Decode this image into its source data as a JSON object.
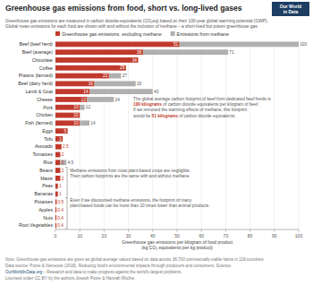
{
  "chart_data": {
    "type": "bar",
    "orientation": "horizontal",
    "stacked": true,
    "grid": true,
    "title": "Greenhouse gas emissions from food, short vs. long-lived gases",
    "subtitle": [
      "Greenhouse gas emissions are measured in carbon dioxide-equivalents (CO₂eq) based on their 100-year global warming potential (GWP).",
      "Global mean emissions for each food are shown with and without the inclusion of methane – a short-lived but potent greenhouse gas."
    ],
    "xlabel": "Greenhouse gas emissions per kilogram of food product\n(kg CO₂ equivalents per kg product)",
    "categories": [
      "Beef (beef herd)",
      "Beef (average)",
      "Chocolate",
      "Coffee",
      "Prawns (farmed)",
      "Beef (dairy herd)",
      "Lamb & Goat",
      "Cheese",
      "Pork",
      "Chicken",
      "Fish (farmed)",
      "Eggs",
      "Tofu",
      "Avocado",
      "Tomatoes",
      "Rice",
      "Beans",
      "Maize",
      "Peas",
      "Bananas",
      "Potatoes",
      "Apples",
      "Nuts",
      "Root Vegetables"
    ],
    "series": [
      {
        "name": "Greenhouse gas emissions, excluding methane",
        "color": "#c0392b",
        "data_labels": true,
        "values": [
          51,
          36,
          34,
          29,
          22,
          16,
          14,
          13,
          10,
          10,
          10,
          5,
          3,
          2.5,
          2,
          2,
          2,
          2,
          1,
          1,
          0.5,
          0.4,
          0.4,
          0.4
        ]
      },
      {
        "name": "Emissions from methane",
        "color": "#b0b0b0",
        "values": [
          49,
          35,
          0,
          0,
          5,
          17,
          26,
          11,
          2,
          0,
          4,
          0,
          0,
          0,
          0,
          2.5,
          0,
          0,
          0,
          0,
          0,
          0,
          0,
          0
        ]
      }
    ],
    "totals": [
      100,
      71,
      null,
      null,
      27,
      33,
      40,
      24,
      12,
      null,
      14,
      null,
      null,
      null,
      null,
      4.5,
      null,
      null,
      null,
      null,
      null,
      null,
      null,
      null
    ],
    "xlim": [
      0,
      100
    ],
    "xticks": [
      0,
      10,
      20,
      30,
      40,
      50,
      60,
      70,
      80,
      90,
      100
    ],
    "annotations": [
      {
        "lines": [
          [
            {
              "text": "The global average carbon footprint of beef from dedicated beef herds is"
            }
          ],
          [
            {
              "text": "100 kilograms",
              "color": "#c0392b"
            },
            {
              "text": " of carbon dioxide equivalents per kilogram of beef."
            }
          ],
          [
            {
              "text": "If we removed the warming effects of methane, this footprint"
            }
          ],
          [
            {
              "text": "would be "
            },
            {
              "text": "51 kilograms",
              "color": "#c0392b"
            },
            {
              "text": " of carbon dioxide equivalents."
            }
          ]
        ]
      },
      {
        "lines": [
          [
            {
              "text": "Methane emissions from most plant-based crops are negligible."
            }
          ],
          [
            {
              "text": "Their carbon footprints are the same with and without methane."
            }
          ]
        ]
      },
      {
        "lines": [
          [
            {
              "text": "Even if we discounted methane emissions, the footprint of many"
            }
          ],
          [
            {
              "text": "plant-based foods can be more than 10 times lower than animal products."
            }
          ]
        ]
      }
    ],
    "logo": [
      "Our World",
      "in Data"
    ],
    "footer": [
      [
        {
          "text": "Note: Greenhouse gas emissions are given as global average values based on data across 38,700 commercially-viable farms in 119 countries."
        }
      ],
      [
        {
          "text": "Data source: Poore & Nemecek (2018). Reducing food's environmental impacts through producers and consumers. Science."
        }
      ],
      [
        {
          "text": "OurWorldInData.org",
          "color": "#1a5276"
        },
        {
          "text": " – Research and data to make progress against the world's largest problems."
        }
      ],
      [
        {
          "text": "Licensed under CC-BY by the authors Joseph Poore & Hannah Ritchie."
        }
      ]
    ]
  }
}
